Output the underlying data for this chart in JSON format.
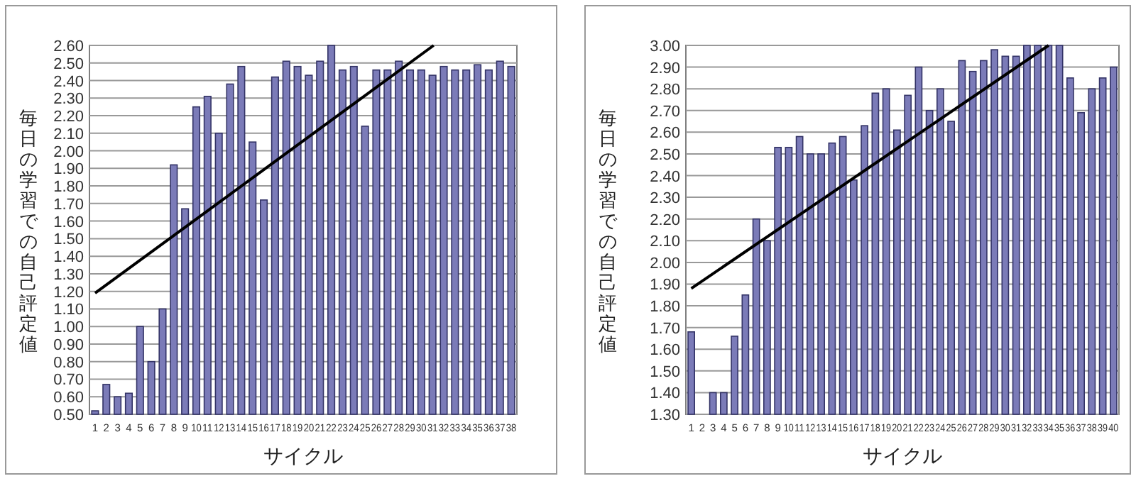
{
  "chart_data": [
    {
      "type": "bar",
      "xlabel": "サイクル",
      "ylabel": "毎日の学習での自己評定値",
      "grid": "y",
      "x": [
        1,
        2,
        3,
        4,
        5,
        6,
        7,
        8,
        9,
        10,
        11,
        12,
        13,
        14,
        15,
        16,
        17,
        18,
        19,
        20,
        21,
        22,
        23,
        24,
        25,
        26,
        27,
        28,
        29,
        30,
        31,
        32,
        33,
        34,
        35,
        36,
        37,
        38
      ],
      "xlim": [
        0.5,
        38.5
      ],
      "xticks": [
        1,
        2,
        3,
        4,
        5,
        6,
        7,
        8,
        9,
        10,
        11,
        12,
        13,
        14,
        15,
        16,
        17,
        18,
        19,
        20,
        21,
        22,
        23,
        24,
        25,
        26,
        27,
        28,
        29,
        30,
        31,
        32,
        33,
        34,
        35,
        36,
        37,
        38
      ],
      "ylim": [
        0.5,
        2.6
      ],
      "yticks": [
        {
          "value": 0.5,
          "label": "0.50"
        },
        {
          "value": 0.6,
          "label": "0.60"
        },
        {
          "value": 0.7,
          "label": "0.70"
        },
        {
          "value": 0.8,
          "label": "0.80"
        },
        {
          "value": 0.9,
          "label": "0.90"
        },
        {
          "value": 1.0,
          "label": "1.00"
        },
        {
          "value": 1.1,
          "label": "1.10"
        },
        {
          "value": 1.2,
          "label": "1.20"
        },
        {
          "value": 1.3,
          "label": "1.30"
        },
        {
          "value": 1.4,
          "label": "1.40"
        },
        {
          "value": 1.5,
          "label": "1.50"
        },
        {
          "value": 1.6,
          "label": "1.60"
        },
        {
          "value": 1.7,
          "label": "1.70"
        },
        {
          "value": 1.8,
          "label": "1.80"
        },
        {
          "value": 1.9,
          "label": "1.90"
        },
        {
          "value": 2.0,
          "label": "2.00"
        },
        {
          "value": 2.1,
          "label": "2.10"
        },
        {
          "value": 2.2,
          "label": "2.20"
        },
        {
          "value": 2.3,
          "label": "2.30"
        },
        {
          "value": 2.4,
          "label": "2.40"
        },
        {
          "value": 2.5,
          "label": "2.50"
        },
        {
          "value": 2.6,
          "label": "2.60"
        }
      ],
      "series": [
        {
          "color": "#7b7bb8",
          "values": [
            0.52,
            0.67,
            0.6,
            0.62,
            1.0,
            0.8,
            1.1,
            1.92,
            1.67,
            2.25,
            2.31,
            2.1,
            2.38,
            2.48,
            2.05,
            1.72,
            2.42,
            2.51,
            2.48,
            2.43,
            2.51,
            2.6,
            2.46,
            2.48,
            2.14,
            2.46,
            2.46,
            2.51,
            2.46,
            2.46,
            2.43,
            2.48,
            2.46,
            2.46,
            2.49,
            2.46,
            2.51,
            2.48
          ]
        },
        {
          "type": "line",
          "color": "#000000",
          "x": [
            1,
            31.1
          ],
          "values": [
            1.19,
            2.6
          ]
        }
      ]
    },
    {
      "type": "bar",
      "xlabel": "サイクル",
      "ylabel": "毎日の学習での自己評定値",
      "grid": "y",
      "x": [
        1,
        2,
        3,
        4,
        5,
        6,
        7,
        8,
        9,
        10,
        11,
        12,
        13,
        14,
        15,
        16,
        17,
        18,
        19,
        20,
        21,
        22,
        23,
        24,
        25,
        26,
        27,
        28,
        29,
        30,
        31,
        32,
        33,
        34,
        35,
        36,
        37,
        38,
        39,
        40
      ],
      "xlim": [
        0.5,
        40.5
      ],
      "xticks": [
        1,
        2,
        3,
        4,
        5,
        6,
        7,
        8,
        9,
        10,
        11,
        12,
        13,
        14,
        15,
        16,
        17,
        18,
        19,
        20,
        21,
        22,
        23,
        24,
        25,
        26,
        27,
        28,
        29,
        30,
        31,
        32,
        33,
        34,
        35,
        36,
        37,
        38,
        39,
        40
      ],
      "ylim": [
        1.3,
        3.0
      ],
      "yticks": [
        {
          "value": 1.3,
          "label": "1.30"
        },
        {
          "value": 1.4,
          "label": "1.40"
        },
        {
          "value": 1.5,
          "label": "1.50"
        },
        {
          "value": 1.6,
          "label": "1.60"
        },
        {
          "value": 1.7,
          "label": "1.70"
        },
        {
          "value": 1.8,
          "label": "1.80"
        },
        {
          "value": 1.9,
          "label": "1.90"
        },
        {
          "value": 2.0,
          "label": "2.00"
        },
        {
          "value": 2.1,
          "label": "2.10"
        },
        {
          "value": 2.2,
          "label": "2.20"
        },
        {
          "value": 2.3,
          "label": "2.30"
        },
        {
          "value": 2.4,
          "label": "2.40"
        },
        {
          "value": 2.5,
          "label": "2.50"
        },
        {
          "value": 2.6,
          "label": "2.60"
        },
        {
          "value": 2.7,
          "label": "2.70"
        },
        {
          "value": 2.8,
          "label": "2.80"
        },
        {
          "value": 2.9,
          "label": "2.90"
        },
        {
          "value": 3.0,
          "label": "3.00"
        }
      ],
      "series": [
        {
          "color": "#7b7bb8",
          "values": [
            1.68,
            1.3,
            1.4,
            1.4,
            1.66,
            1.85,
            2.2,
            2.1,
            2.53,
            2.53,
            2.58,
            2.5,
            2.5,
            2.55,
            2.58,
            2.38,
            2.63,
            2.78,
            2.8,
            2.61,
            2.77,
            2.9,
            2.7,
            2.8,
            2.65,
            2.93,
            2.88,
            2.93,
            2.98,
            2.95,
            2.95,
            3.0,
            3.0,
            3.0,
            3.0,
            2.85,
            2.69,
            2.8,
            2.85,
            2.9
          ]
        },
        {
          "type": "line",
          "color": "#000000",
          "x": [
            1,
            34
          ],
          "values": [
            1.88,
            3.0
          ]
        }
      ]
    }
  ]
}
